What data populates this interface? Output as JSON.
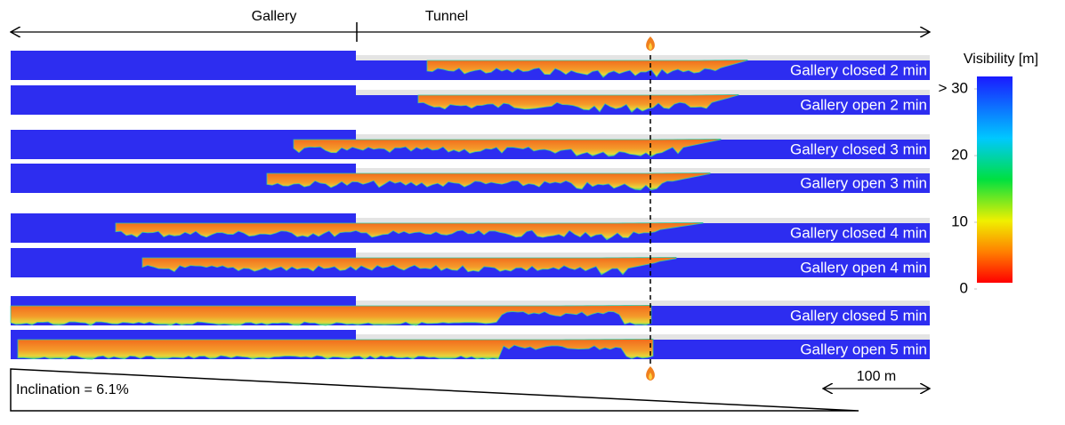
{
  "header": {
    "gallery": "Gallery",
    "tunnel": "Tunnel"
  },
  "panels": [
    "Gallery closed 2 min",
    "Gallery open 2 min",
    "Gallery closed 3 min",
    "Gallery open 3 min",
    "Gallery closed 4 min",
    "Gallery open 4 min",
    "Gallery closed 5 min",
    "Gallery open 5 min"
  ],
  "colorbar": {
    "title": "Visibility [m]",
    "ticks": [
      {
        "value": 30,
        "label": "> 30"
      },
      20,
      10,
      0
    ]
  },
  "scale_bar": "100 m",
  "inclination": "Inclination = 6.1%"
}
